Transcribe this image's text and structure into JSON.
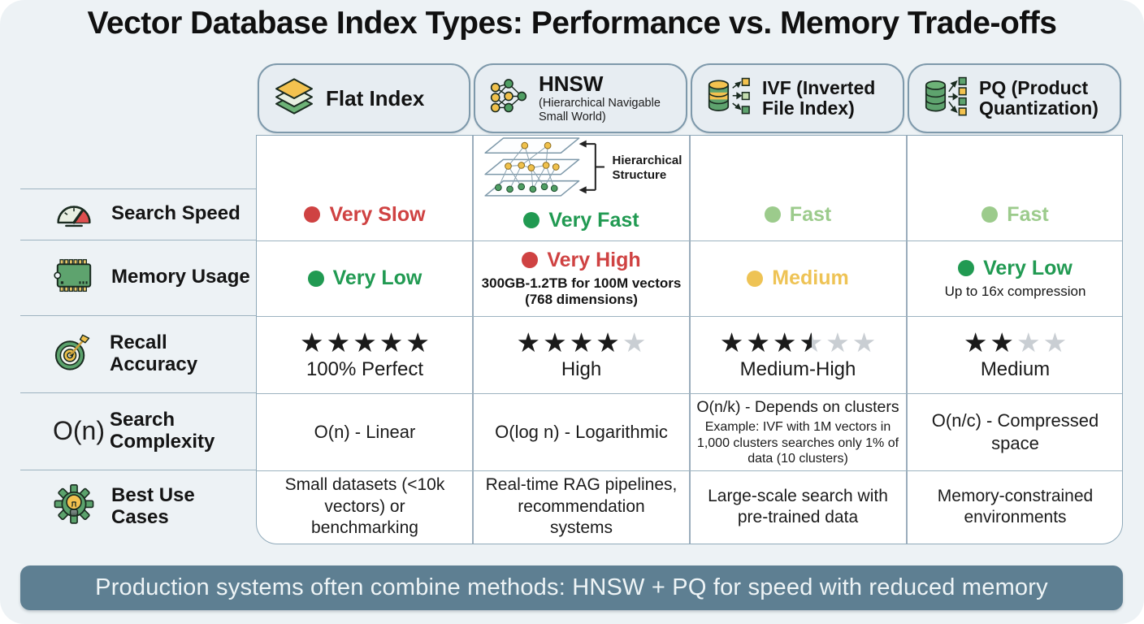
{
  "title": "Vector Database Index Types: Performance vs. Memory Trade-offs",
  "columns": [
    {
      "title": "Flat Index",
      "subtitle": ""
    },
    {
      "title": "HNSW",
      "subtitle": "(Hierarchical Navigable Small World)"
    },
    {
      "title": "IVF (Inverted File Index)",
      "subtitle": ""
    },
    {
      "title": "PQ (Product Quantization)",
      "subtitle": ""
    }
  ],
  "rows": {
    "search_speed": "Search Speed",
    "memory_usage": "Memory Usage",
    "recall_accuracy": "Recall Accuracy",
    "search_complexity": "Search Complexity",
    "best_use_cases": "Best Use Cases",
    "complexity_icon_text": "O(n)"
  },
  "hnsw_diagram": {
    "label": "Hierarchical Structure"
  },
  "cells": {
    "search_speed": [
      {
        "text": "Very Slow",
        "level": "red"
      },
      {
        "text": "Very Fast",
        "level": "green"
      },
      {
        "text": "Fast",
        "level": "light-green"
      },
      {
        "text": "Fast",
        "level": "light-green"
      }
    ],
    "memory_usage": [
      {
        "text": "Very Low",
        "level": "green",
        "note": ""
      },
      {
        "text": "Very High",
        "level": "red",
        "note": "300GB-1.2TB for 100M vectors (768 dimensions)"
      },
      {
        "text": "Medium",
        "level": "yellow",
        "note": ""
      },
      {
        "text": "Very Low",
        "level": "green",
        "note": "Up to 16x compression"
      }
    ],
    "recall_accuracy": [
      {
        "stars": [
          "full",
          "full",
          "full",
          "full",
          "full"
        ],
        "text": "100% Perfect"
      },
      {
        "stars": [
          "full",
          "full",
          "full",
          "full",
          "empty"
        ],
        "text": "High"
      },
      {
        "stars": [
          "full",
          "full",
          "full",
          "half",
          "empty",
          "empty"
        ],
        "text": "Medium-High"
      },
      {
        "stars": [
          "full",
          "full",
          "empty",
          "empty"
        ],
        "text": "Medium"
      }
    ],
    "search_complexity": [
      {
        "text": "O(n) - Linear",
        "note": ""
      },
      {
        "text": "O(log n) - Logarithmic",
        "note": ""
      },
      {
        "text": "O(n/k) - Depends on clusters",
        "note": "Example: IVF with 1M vectors in 1,000 clusters searches only 1% of data (10 clusters)"
      },
      {
        "text": "O(n/c) - Compressed space",
        "note": ""
      }
    ],
    "best_use_cases": [
      {
        "text": "Small datasets (<10k vectors) or benchmarking"
      },
      {
        "text": "Real-time RAG pipelines, recommendation systems"
      },
      {
        "text": "Large-scale search with pre-trained data"
      },
      {
        "text": "Memory-constrained environments"
      }
    ]
  },
  "footer": {
    "text": "Production systems often combine methods: HNSW + PQ for speed with reduced memory"
  },
  "colors": {
    "red": "#cf4242",
    "green": "#219a52",
    "light_green": "#9ccb8c",
    "yellow": "#eec355",
    "star_gray": "#c9ced3",
    "footer_bg": "#5e7f92",
    "pill_bg": "#e7edf2",
    "grid_line": "#9badbc"
  }
}
